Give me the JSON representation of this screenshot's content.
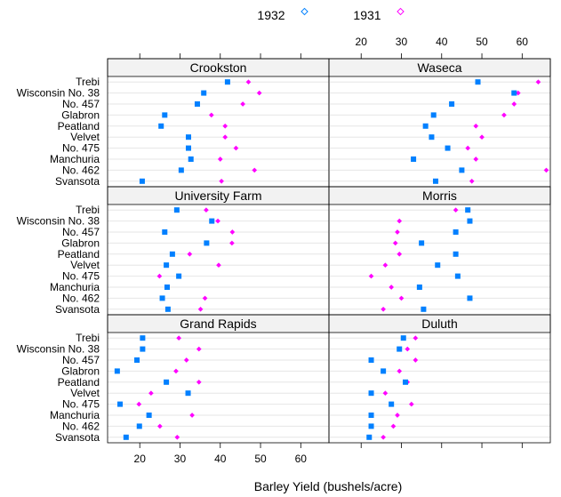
{
  "chart_data": {
    "type": "scatter",
    "xlabel": "Barley Yield (bushels/acre)",
    "xlim": [
      12,
      67
    ],
    "xticks": [
      20,
      30,
      40,
      50,
      60
    ],
    "legend": {
      "position": "top",
      "entries": [
        {
          "name": "1932",
          "color": "#0080ff",
          "marker": "diamond"
        },
        {
          "name": "1931",
          "color": "#ff00ff",
          "marker": "diamond"
        }
      ]
    },
    "varieties": [
      "Trebi",
      "Wisconsin No. 38",
      "No. 457",
      "Glabron",
      "Peatland",
      "Velvet",
      "No. 475",
      "Manchuria",
      "No. 462",
      "Svansota"
    ],
    "panels": [
      {
        "site": "Crookston",
        "y1932": [
          41.8,
          35.9,
          34.3,
          26.2,
          25.3,
          32.1,
          32.1,
          32.7,
          30.3,
          20.6
        ],
        "y1931": [
          47.0,
          49.7,
          45.6,
          37.8,
          41.2,
          41.2,
          43.9,
          40.0,
          48.5,
          40.3
        ]
      },
      {
        "site": "Waseca",
        "y1932": [
          49.0,
          58.0,
          42.5,
          38.0,
          36.0,
          37.5,
          41.5,
          33.0,
          45.0,
          38.5
        ],
        "y1931": [
          64.0,
          59.0,
          58.0,
          55.5,
          48.5,
          50.0,
          46.5,
          48.5,
          66.0,
          47.5
        ]
      },
      {
        "site": "University Farm",
        "y1932": [
          29.2,
          37.9,
          26.2,
          36.6,
          28.1,
          26.6,
          29.7,
          26.8,
          25.6,
          27.0
        ],
        "y1931": [
          36.5,
          39.4,
          43.0,
          42.9,
          32.4,
          39.6,
          24.9,
          26.7,
          36.2,
          35.1
        ]
      },
      {
        "site": "Morris",
        "y1932": [
          46.5,
          47.0,
          43.5,
          35.0,
          43.5,
          39.0,
          44.0,
          34.5,
          47.0,
          35.5
        ],
        "y1931": [
          43.5,
          29.5,
          29.0,
          28.5,
          29.5,
          26.0,
          22.5,
          27.5,
          30.0,
          25.5
        ]
      },
      {
        "site": "Grand Rapids",
        "y1932": [
          20.7,
          20.7,
          19.3,
          14.4,
          26.6,
          32.0,
          15.1,
          22.3,
          19.9,
          16.6
        ],
        "y1931": [
          29.7,
          34.7,
          31.6,
          29.0,
          34.7,
          22.8,
          19.8,
          33.0,
          25.0,
          29.3
        ]
      },
      {
        "site": "Duluth",
        "y1932": [
          30.5,
          29.5,
          22.5,
          25.5,
          31.0,
          22.5,
          27.5,
          22.5,
          22.5,
          22.0
        ],
        "y1931": [
          33.5,
          31.5,
          33.5,
          29.5,
          31.5,
          26.0,
          32.5,
          29.0,
          28.0,
          25.5
        ]
      }
    ]
  }
}
